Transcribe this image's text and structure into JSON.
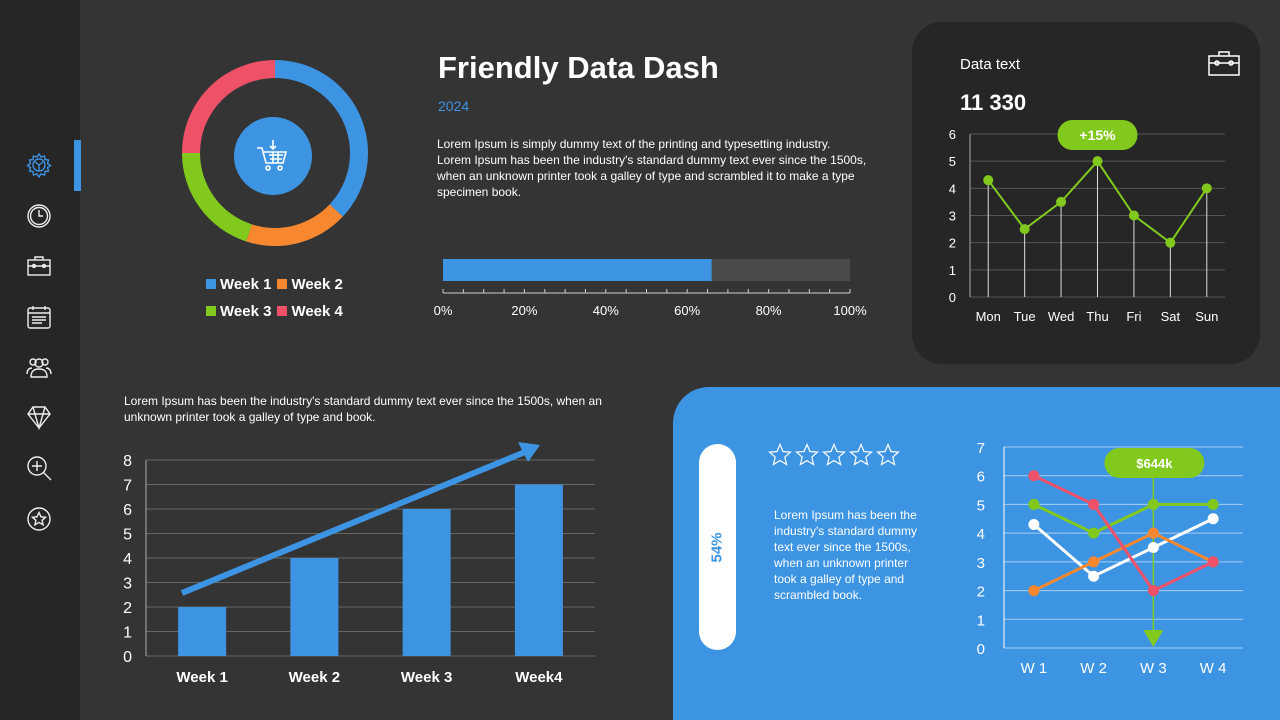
{
  "sidebar": {
    "items": [
      {
        "icon": "settings-icon",
        "active": true
      },
      {
        "icon": "clock-icon"
      },
      {
        "icon": "toolbox-icon"
      },
      {
        "icon": "calendar-icon"
      },
      {
        "icon": "users-icon"
      },
      {
        "icon": "diamond-icon"
      },
      {
        "icon": "zoom-in-icon"
      },
      {
        "icon": "star-icon"
      }
    ]
  },
  "header": {
    "title": "Friendly Data Dash",
    "year": "2024",
    "description": "Lorem Ipsum is simply dummy text of the printing and typesetting industry. Lorem Ipsum has been the industry's standard dummy text ever since the 1500s, when an unknown printer took a galley of type and scrambled it to make a type specimen book."
  },
  "donut": {
    "center_icon": "shopping-cart-icon",
    "slices": [
      {
        "name": "Week 1",
        "value": 37,
        "color": "#3d94e3"
      },
      {
        "name": "Week 2",
        "value": 18,
        "color": "#f7882f"
      },
      {
        "name": "Week 3",
        "value": 20,
        "color": "#82c91e"
      },
      {
        "name": "Week 4",
        "value": 25,
        "color": "#ef5168"
      }
    ]
  },
  "progress": {
    "value": 66,
    "ticks": [
      "0%",
      "20%",
      "40%",
      "60%",
      "80%",
      "100%"
    ]
  },
  "data_card": {
    "label": "Data text",
    "value": "11 330",
    "badge": "+15%",
    "icon": "toolbox-icon"
  },
  "bar_text": "Lorem Ipsum has been the industry's standard dummy text ever since the 1500s, when an unknown printer took a galley of type and book.",
  "blue_panel": {
    "percent": "54%",
    "rating": 0,
    "rating_max": 5,
    "text": "Lorem Ipsum has been the industry's standard dummy text ever since the 1500s, when an unknown printer took a galley of type and scrambled book."
  },
  "chart_data": [
    {
      "type": "line",
      "categories": [
        "Mon",
        "Tue",
        "Wed",
        "Thu",
        "Fri",
        "Sat",
        "Sun"
      ],
      "values": [
        4.3,
        2.5,
        3.5,
        5,
        3,
        2,
        4
      ],
      "ylim": [
        0,
        6
      ],
      "yticks": [
        0,
        1,
        2,
        3,
        4,
        5,
        6
      ],
      "color": "#82c91e",
      "grid": true,
      "annotation": "+15%"
    },
    {
      "type": "bar",
      "categories": [
        "Week 1",
        "Week 2",
        "Week 3",
        "Week4"
      ],
      "values": [
        2,
        4,
        6,
        7
      ],
      "ylim": [
        0,
        8
      ],
      "yticks": [
        0,
        1,
        2,
        3,
        4,
        5,
        6,
        7,
        8
      ],
      "color": "#3d94e3",
      "grid": true,
      "trend_arrow": true
    },
    {
      "type": "line",
      "categories": [
        "W 1",
        "W 2",
        "W 3",
        "W 4"
      ],
      "ylim": [
        0,
        7
      ],
      "yticks": [
        0,
        1,
        2,
        3,
        4,
        5,
        6,
        7
      ],
      "grid": true,
      "annotation": "$644k",
      "annotation_category": "W 3",
      "series": [
        {
          "color": "#ffffff",
          "values": [
            4.3,
            2.5,
            3.5,
            4.5
          ]
        },
        {
          "color": "#82c91e",
          "values": [
            5,
            4,
            5,
            5
          ]
        },
        {
          "color": "#f7882f",
          "values": [
            2,
            3,
            4,
            3
          ]
        },
        {
          "color": "#ef5168",
          "values": [
            6,
            5,
            2,
            3
          ]
        }
      ]
    }
  ]
}
